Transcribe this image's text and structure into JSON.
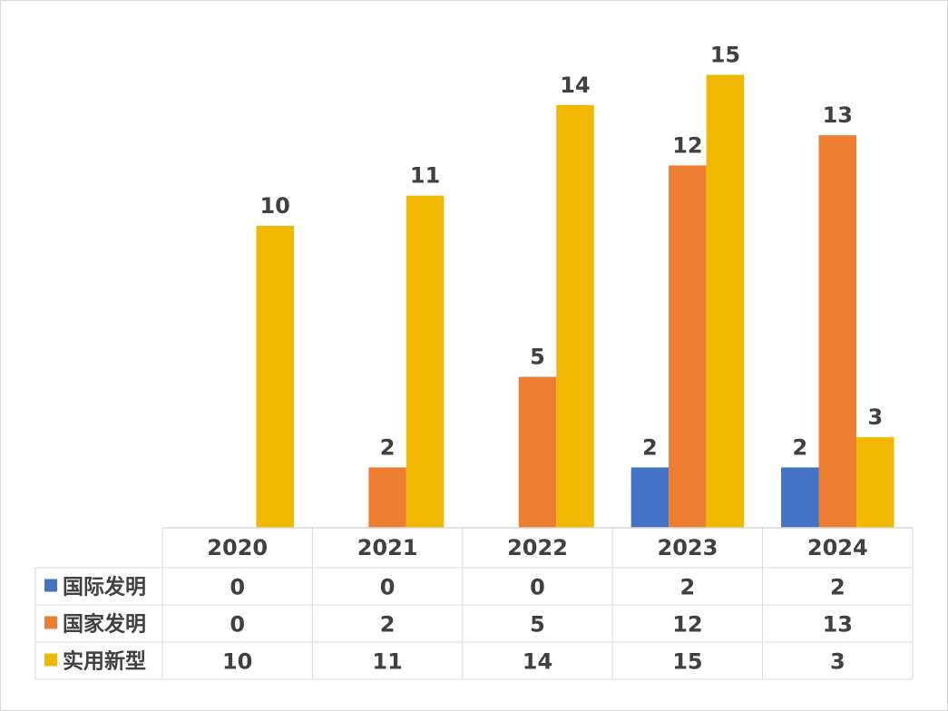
{
  "chart_data": {
    "type": "bar",
    "categories": [
      "2020",
      "2021",
      "2022",
      "2023",
      "2024"
    ],
    "series": [
      {
        "name": "国际发明",
        "color": "#4472c4",
        "values": [
          0,
          0,
          0,
          2,
          2
        ]
      },
      {
        "name": "国家发明",
        "color": "#ed7d31",
        "values": [
          0,
          2,
          5,
          12,
          13
        ]
      },
      {
        "name": "实用新型",
        "color": "#f0b800",
        "values": [
          10,
          11,
          14,
          15,
          3
        ]
      }
    ],
    "ylim": [
      0,
      15
    ],
    "grid": false,
    "legend": "data-table-left",
    "data_table": true
  }
}
